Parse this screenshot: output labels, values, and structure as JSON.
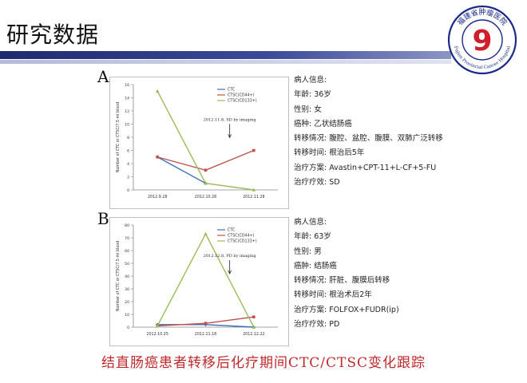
{
  "slide": {
    "title": "研究数据",
    "caption": "结直肠癌患者转移后化疗期间CTC/CTSC变化跟踪"
  },
  "logo": {
    "text_top": "福建省肿瘤医院",
    "text_bottom": "Fujian Provincial Cancer Hospital",
    "mark": "9",
    "colors": {
      "ring": "#1b2a8a",
      "mark": "#d01f2a"
    }
  },
  "colors": {
    "ctc": "#3b6fb6",
    "ctsc44": "#c0504d",
    "ctsc133": "#9bbb59",
    "title_bar": "#1e2a6e",
    "caption": "#c0282a"
  },
  "chart_data": [
    {
      "panel": "A",
      "type": "line",
      "title": "",
      "ylabel": "Number of CTC or CTSC/7.5 ml blood",
      "xlabel": "",
      "categories": [
        "2012.9.28",
        "2012.10.28",
        "2012.11.28"
      ],
      "ylim": [
        0,
        16
      ],
      "yticks": [
        0,
        2,
        4,
        6,
        8,
        10,
        12,
        14,
        16
      ],
      "series": [
        {
          "name": "CTC",
          "values": [
            5,
            1,
            null
          ],
          "color": "#3b6fb6",
          "marker": "diamond"
        },
        {
          "name": "CTSC(CD44+)",
          "values": [
            5,
            3,
            6
          ],
          "color": "#c0504d",
          "marker": "square"
        },
        {
          "name": "CTSC(CD133+)",
          "values": [
            15,
            1,
            0
          ],
          "color": "#9bbb59",
          "marker": "triangle"
        }
      ],
      "annotation": {
        "text": "2012.11.8, SD by imaging",
        "x_between": [
          1,
          2
        ],
        "y": 10.5
      },
      "legend": "top-right"
    },
    {
      "panel": "B",
      "type": "line",
      "title": "",
      "ylabel": "Number of CTC or CTSC/7.5 ml blood",
      "xlabel": "",
      "categories": [
        "2012.10.25",
        "2012.11.18",
        "2012.12.22"
      ],
      "ylim": [
        0,
        80
      ],
      "yticks": [
        0,
        10,
        20,
        30,
        40,
        50,
        60,
        70,
        80
      ],
      "series": [
        {
          "name": "CTC",
          "values": [
            2,
            2,
            0
          ],
          "color": "#3b6fb6",
          "marker": "diamond"
        },
        {
          "name": "CTSC(CD44+)",
          "values": [
            1,
            3,
            8
          ],
          "color": "#c0504d",
          "marker": "square"
        },
        {
          "name": "CTSC(CD133+)",
          "values": [
            1,
            73,
            0
          ],
          "color": "#9bbb59",
          "marker": "triangle"
        }
      ],
      "annotation": {
        "text": "2012.12.8, PD by imaging",
        "x_between": [
          1,
          2
        ],
        "y": 55
      },
      "legend": "top-right"
    }
  ],
  "patients": [
    {
      "label": "A",
      "lines": [
        "病人信息:",
        "年龄: 36岁",
        "性别:  女",
        "癌种: 乙状结肠癌",
        "转移情况: 腹腔、盆腔、腹膜、双肺广泛转移",
        "转移时间: 根治后5年",
        "治疗方案: Avastin+CPT-11+L-CF+5-FU",
        "治疗疗效: SD"
      ]
    },
    {
      "label": "B",
      "lines": [
        "病人信息:",
        "年龄:  63岁",
        "性别: 男",
        "癌肿: 结肠癌",
        "转移情况: 肝脏、腹膜后转移",
        "转移时间: 根治术后2年",
        "治疗方案: FOLFOX+FUDR(ip)",
        "治疗疗效: PD"
      ]
    }
  ]
}
